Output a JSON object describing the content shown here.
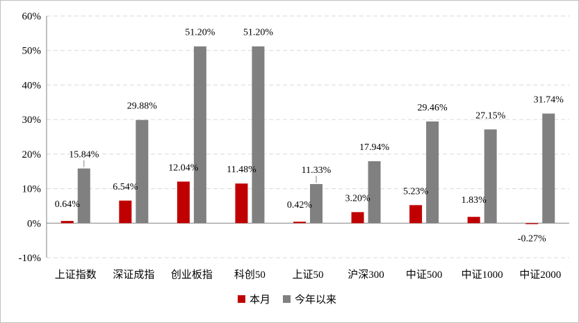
{
  "chart_data": {
    "type": "bar",
    "categories": [
      "上证指数",
      "深证成指",
      "创业板指",
      "科创50",
      "上证50",
      "沪深300",
      "中证500",
      "中证1000",
      "中证2000"
    ],
    "series": [
      {
        "name": "本月",
        "color": "#C00000",
        "values": [
          0.64,
          6.54,
          12.04,
          11.48,
          0.42,
          3.2,
          5.23,
          1.83,
          -0.27
        ],
        "labels": [
          "0.64%",
          "6.54%",
          "12.04%",
          "11.48%",
          "0.42%",
          "3.20%",
          "5.23%",
          "1.83%",
          "-0.27%"
        ]
      },
      {
        "name": "今年以来",
        "color": "#808080",
        "values": [
          15.84,
          29.88,
          51.2,
          51.2,
          11.33,
          17.94,
          29.46,
          27.15,
          31.74
        ],
        "labels": [
          "15.84%",
          "29.88%",
          "51.20%",
          "51.20%",
          "11.33%",
          "17.94%",
          "29.46%",
          "27.15%",
          "31.74%"
        ]
      }
    ],
    "ylim": [
      -10,
      60
    ],
    "yticks": [
      -10,
      0,
      10,
      20,
      30,
      40,
      50,
      60
    ],
    "ytick_labels": [
      "-10%",
      "0%",
      "10%",
      "20%",
      "30%",
      "40%",
      "50%",
      "60%"
    ],
    "grid": true,
    "legend_position": "bottom"
  }
}
